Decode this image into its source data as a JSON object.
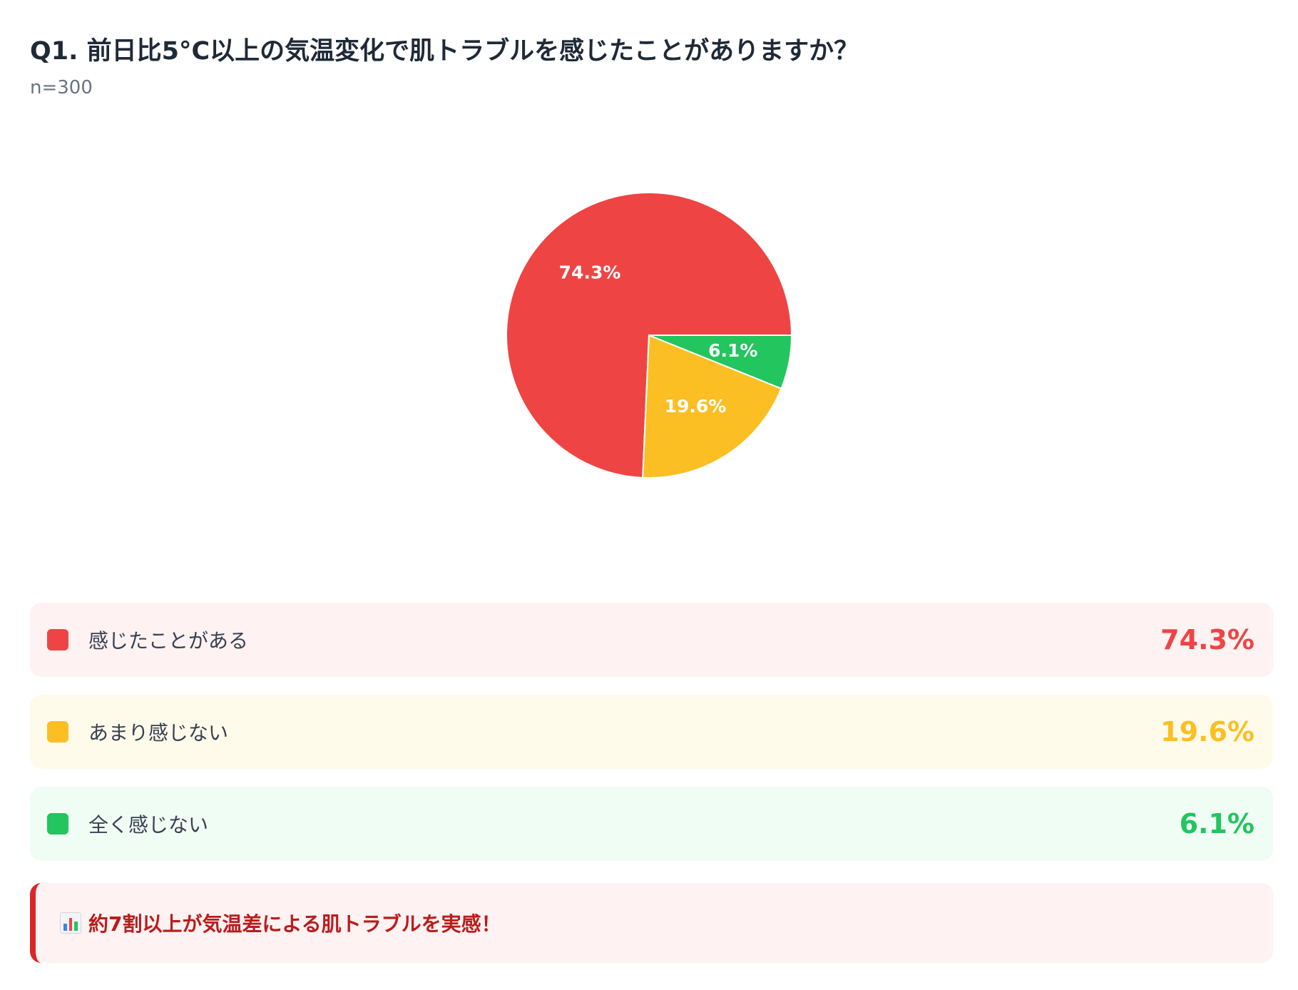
{
  "header": {
    "title": "Q1. 前日比5°C以上の気温変化で肌トラブルを感じたことがありますか？",
    "sample": "n=300"
  },
  "chart_data": {
    "type": "pie",
    "categories": [
      "感じたことがある",
      "あまり感じない",
      "全く感じない"
    ],
    "values": [
      74.3,
      19.6,
      6.1
    ],
    "labels": [
      "74.3%",
      "19.6%",
      "6.1%"
    ],
    "colors": [
      "#ef4444",
      "#fbbf24",
      "#22c55e"
    ],
    "legend_position": "bottom"
  },
  "legend": [
    {
      "label": "感じたことがある",
      "value": "74.3%",
      "color": "#ef4444",
      "bg": "#fef2f2"
    },
    {
      "label": "あまり感じない",
      "value": "19.6%",
      "color": "#fbbf24",
      "bg": "#fffbeb"
    },
    {
      "label": "全く感じない",
      "value": "6.1%",
      "color": "#22c55e",
      "bg": "#f0fdf4"
    }
  ],
  "callout": {
    "icon": "bar-chart-icon",
    "text": "約7割以上が気温差による肌トラブルを実感！"
  }
}
